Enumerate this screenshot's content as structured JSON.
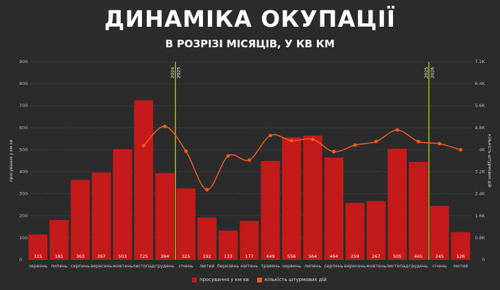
{
  "title": "ДИНАМІКА ОКУПАЦІЇ",
  "subtitle": "В РОЗРІЗІ МІСЯЦІВ, У КВ КМ",
  "colors": {
    "bar": "#c41a1a",
    "line": "#f05a22",
    "year_marker": "#d8d81e",
    "grid": "#555555",
    "background": "#2b2b2b"
  },
  "chart_data": {
    "type": "bar",
    "categories": [
      "червень",
      "липень",
      "серпень",
      "вересень",
      "жовтень",
      "листопад",
      "грудень",
      "січень",
      "лютий",
      "березень",
      "квітень",
      "травень",
      "червень",
      "липень",
      "серпень",
      "вересень",
      "жовтень",
      "листопад",
      "грудень",
      "січень",
      "лютий"
    ],
    "series": [
      {
        "name": "просування у км кв",
        "type": "bar",
        "axis": "left",
        "values": [
          115,
          181,
          363,
          397,
          503,
          725,
          394,
          325,
          192,
          133,
          177,
          449,
          556,
          564,
          464,
          259,
          267,
          505,
          445,
          245,
          126
        ]
      },
      {
        "name": "кількість штурмових дій",
        "type": "line",
        "axis": "right",
        "values": [
          null,
          null,
          null,
          null,
          null,
          4150,
          4850,
          3950,
          2550,
          3780,
          3630,
          4520,
          4330,
          4380,
          3930,
          4170,
          4300,
          4720,
          4300,
          4220,
          4000
        ]
      }
    ],
    "ylabel": "просування у км кв",
    "y2label": "кількість штурмових дій",
    "ylim": [
      0,
      900
    ],
    "y2lim": [
      0,
      7200
    ],
    "yticks": [
      "0",
      "100",
      "200",
      "300",
      "400",
      "500",
      "600",
      "700",
      "800",
      "900"
    ],
    "y2ticks": [
      "0",
      "0.8K",
      "1.6K",
      "2.4K",
      "3.2K",
      "4K",
      "4.8K",
      "5.6K",
      "6.4K",
      "7.2K"
    ],
    "year_markers": [
      {
        "after_index": 6,
        "label_left": "2024",
        "label_right": "2025"
      },
      {
        "after_index": 18,
        "label_left": "2025",
        "label_right": "2026"
      }
    ],
    "grid": true,
    "legend": "bottom"
  }
}
